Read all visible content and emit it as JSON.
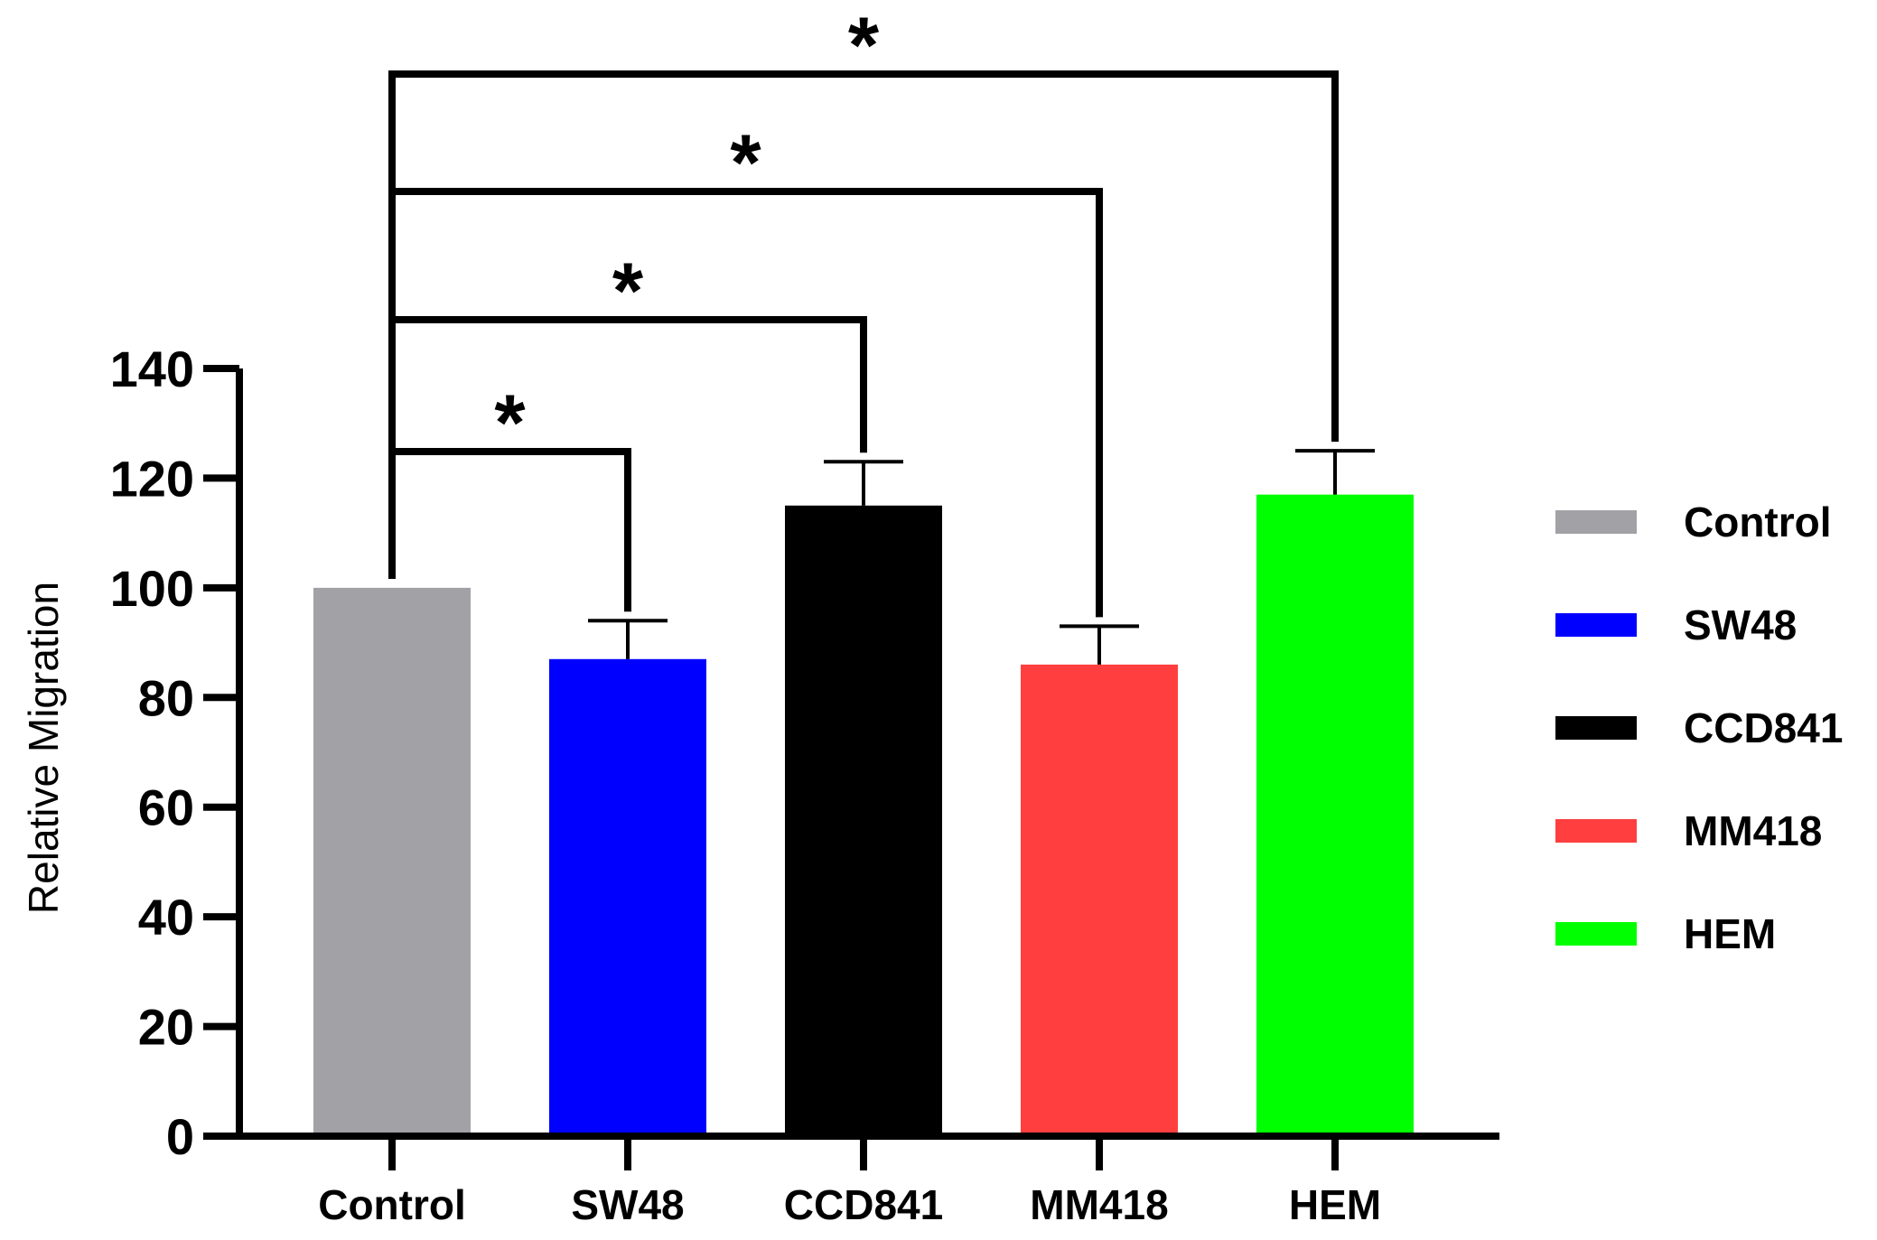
{
  "chart_data": {
    "type": "bar",
    "title": "",
    "xlabel": "",
    "ylabel": "Relative Migration",
    "ylim": [
      0,
      140
    ],
    "yticks": [
      0,
      20,
      40,
      60,
      80,
      100,
      120,
      140
    ],
    "ytick_labels": [
      "0",
      "20",
      "40",
      "60",
      "80",
      "100",
      "120",
      "140"
    ],
    "grid": false,
    "legend_position": "right",
    "categories": [
      "Control",
      "SW48",
      "CCD841",
      "MM418",
      "HEM"
    ],
    "values": [
      100,
      87,
      115,
      86,
      117
    ],
    "error_upper": [
      0,
      7,
      8,
      7,
      8
    ],
    "colors": [
      "#a2a2a6",
      "#0000ff",
      "#000000",
      "#ff3f3f",
      "#00ff00"
    ],
    "legend": [
      "Control",
      "SW48",
      "CCD841",
      "MM418",
      "HEM"
    ],
    "significance": [
      {
        "from": "Control",
        "to": "SW48",
        "label": "*"
      },
      {
        "from": "Control",
        "to": "CCD841",
        "label": "*"
      },
      {
        "from": "Control",
        "to": "MM418",
        "label": "*"
      },
      {
        "from": "Control",
        "to": "HEM",
        "label": "*"
      }
    ]
  }
}
